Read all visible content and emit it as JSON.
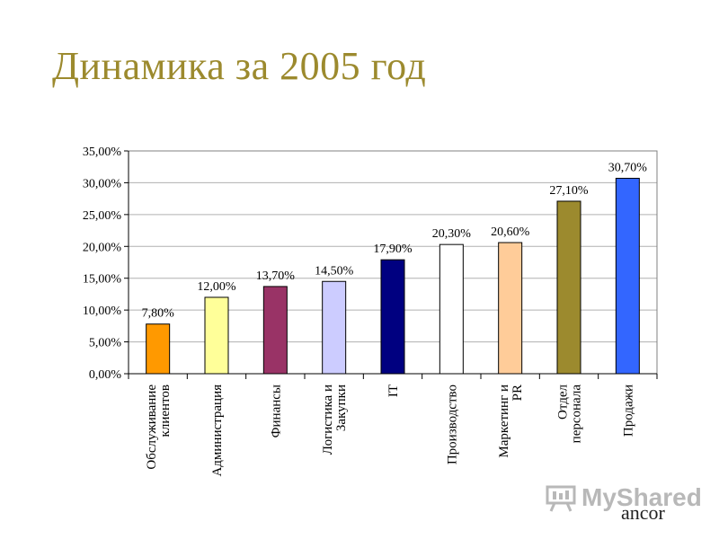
{
  "slide": {
    "title": "Динамика за 2005 год"
  },
  "chart_data": {
    "type": "bar",
    "categories": [
      "Обслуживание клиентов",
      "Администрация",
      "Финансы",
      "Логистика и Закупки",
      "IT",
      "Производство",
      "Маркетинг и PR",
      "Отдел персонала",
      "Продажи"
    ],
    "category_lines": [
      [
        "Обслуживание",
        "клиентов"
      ],
      [
        "Администрация"
      ],
      [
        "Финансы"
      ],
      [
        "Логистика и",
        "Закупки"
      ],
      [
        "IT"
      ],
      [
        "Производство"
      ],
      [
        "Маркетинг и",
        "PR"
      ],
      [
        "Отдел",
        "персонала"
      ],
      [
        "Продажи"
      ]
    ],
    "values": [
      7.8,
      12.0,
      13.7,
      14.5,
      17.9,
      20.3,
      20.6,
      27.1,
      30.7
    ],
    "data_labels": [
      "7,80%",
      "12,00%",
      "13,70%",
      "14,50%",
      "17,90%",
      "20,30%",
      "20,60%",
      "27,10%",
      "30,70%"
    ],
    "colors": [
      "#ff9900",
      "#ffff99",
      "#993366",
      "#ccccff",
      "#000080",
      "#ffffff",
      "#ffcc99",
      "#9c8a2e",
      "#3366ff"
    ],
    "yticks": [
      0,
      5,
      10,
      15,
      20,
      25,
      30,
      35
    ],
    "ytick_labels": [
      "0,00%",
      "5,00%",
      "10,00%",
      "15,00%",
      "20,00%",
      "25,00%",
      "30,00%",
      "35,00%"
    ],
    "ylim": [
      0,
      35
    ],
    "grid": true,
    "legend": "none"
  },
  "watermark": {
    "text": "MyShared",
    "icon": "presentation-board-icon"
  },
  "corner_text": "ancor"
}
